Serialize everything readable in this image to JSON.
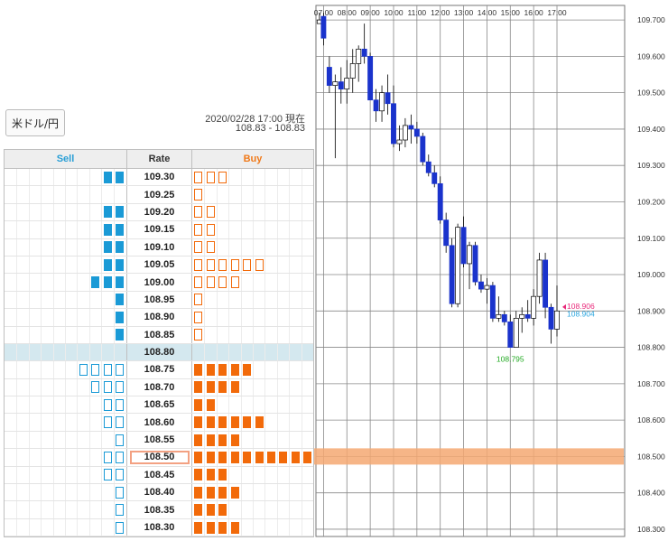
{
  "pair_label": "米ドル/円",
  "timestamp": "2020/02/28 17:00 現在",
  "bid_ask": "108.83 - 108.83",
  "book": {
    "headers": {
      "sell": "Sell",
      "rate": "Rate",
      "buy": "Buy"
    },
    "colors": {
      "sell": "#1a9ad6",
      "buy": "#f26a0a",
      "current_row": "#d4e8ef",
      "highlight": "#f3a182"
    },
    "current_rate": "108.80",
    "highlight_rate": "108.50",
    "rows": [
      {
        "rate": "109.30",
        "sell_filled": 2,
        "sell_outline": 0,
        "buy_filled": 0,
        "buy_outline": 3
      },
      {
        "rate": "109.25",
        "sell_filled": 0,
        "sell_outline": 0,
        "buy_filled": 0,
        "buy_outline": 1
      },
      {
        "rate": "109.20",
        "sell_filled": 2,
        "sell_outline": 0,
        "buy_filled": 0,
        "buy_outline": 2
      },
      {
        "rate": "109.15",
        "sell_filled": 2,
        "sell_outline": 0,
        "buy_filled": 0,
        "buy_outline": 2
      },
      {
        "rate": "109.10",
        "sell_filled": 2,
        "sell_outline": 0,
        "buy_filled": 0,
        "buy_outline": 2
      },
      {
        "rate": "109.05",
        "sell_filled": 2,
        "sell_outline": 0,
        "buy_filled": 0,
        "buy_outline": 6
      },
      {
        "rate": "109.00",
        "sell_filled": 3,
        "sell_outline": 0,
        "buy_filled": 0,
        "buy_outline": 4
      },
      {
        "rate": "108.95",
        "sell_filled": 1,
        "sell_outline": 0,
        "buy_filled": 0,
        "buy_outline": 1
      },
      {
        "rate": "108.90",
        "sell_filled": 1,
        "sell_outline": 0,
        "buy_filled": 0,
        "buy_outline": 1
      },
      {
        "rate": "108.85",
        "sell_filled": 1,
        "sell_outline": 0,
        "buy_filled": 0,
        "buy_outline": 1
      },
      {
        "rate": "108.80",
        "sell_filled": 0,
        "sell_outline": 0,
        "buy_filled": 0,
        "buy_outline": 0
      },
      {
        "rate": "108.75",
        "sell_filled": 0,
        "sell_outline": 4,
        "buy_filled": 5,
        "buy_outline": 0
      },
      {
        "rate": "108.70",
        "sell_filled": 0,
        "sell_outline": 3,
        "buy_filled": 4,
        "buy_outline": 0
      },
      {
        "rate": "108.65",
        "sell_filled": 0,
        "sell_outline": 2,
        "buy_filled": 2,
        "buy_outline": 0
      },
      {
        "rate": "108.60",
        "sell_filled": 0,
        "sell_outline": 2,
        "buy_filled": 6,
        "buy_outline": 0
      },
      {
        "rate": "108.55",
        "sell_filled": 0,
        "sell_outline": 1,
        "buy_filled": 4,
        "buy_outline": 0
      },
      {
        "rate": "108.50",
        "sell_filled": 0,
        "sell_outline": 2,
        "buy_filled": 10,
        "buy_outline": 0
      },
      {
        "rate": "108.45",
        "sell_filled": 0,
        "sell_outline": 2,
        "buy_filled": 3,
        "buy_outline": 0
      },
      {
        "rate": "108.40",
        "sell_filled": 0,
        "sell_outline": 1,
        "buy_filled": 4,
        "buy_outline": 0
      },
      {
        "rate": "108.35",
        "sell_filled": 0,
        "sell_outline": 1,
        "buy_filled": 3,
        "buy_outline": 0
      },
      {
        "rate": "108.30",
        "sell_filled": 0,
        "sell_outline": 1,
        "buy_filled": 4,
        "buy_outline": 0
      }
    ]
  },
  "chart_data": {
    "type": "candlestick",
    "x_tick_labels": [
      "07:00",
      "08:00",
      "09:00",
      "10:00",
      "11:00",
      "12:00",
      "13:00",
      "14:00",
      "15:00",
      "16:00",
      "17:00"
    ],
    "x_ticks": [
      0,
      4,
      8,
      12,
      16,
      20,
      24,
      28,
      32,
      36,
      40
    ],
    "ylim": [
      108.28,
      109.74
    ],
    "y_ticks": [
      109.7,
      109.6,
      109.5,
      109.4,
      109.3,
      109.2,
      109.1,
      109.0,
      108.9,
      108.8,
      108.7,
      108.6,
      108.5,
      108.4,
      108.3
    ],
    "y_tick_labels": [
      "109.700",
      "109.600",
      "109.500",
      "109.400",
      "109.300",
      "109.200",
      "109.100",
      "109.000",
      "108.900",
      "108.800",
      "108.700",
      "108.600",
      "108.500",
      "108.400",
      "108.300"
    ],
    "colors": {
      "down": "#1a33cc",
      "up": "#ffffff",
      "wick": "#000000",
      "grid": "#888888",
      "band": "#f4a872"
    },
    "candles": [
      {
        "x": -0.7,
        "o": 109.69,
        "h": 109.72,
        "l": 109.69,
        "c": 109.7
      },
      {
        "x": 0,
        "o": 109.71,
        "h": 109.72,
        "l": 109.63,
        "c": 109.65
      },
      {
        "x": 1,
        "o": 109.57,
        "h": 109.6,
        "l": 109.5,
        "c": 109.52
      },
      {
        "x": 2,
        "o": 109.52,
        "h": 109.55,
        "l": 109.32,
        "c": 109.53
      },
      {
        "x": 3,
        "o": 109.53,
        "h": 109.57,
        "l": 109.47,
        "c": 109.51
      },
      {
        "x": 4,
        "o": 109.51,
        "h": 109.59,
        "l": 109.47,
        "c": 109.54
      },
      {
        "x": 5,
        "o": 109.54,
        "h": 109.62,
        "l": 109.5,
        "c": 109.58
      },
      {
        "x": 6,
        "o": 109.58,
        "h": 109.63,
        "l": 109.53,
        "c": 109.62
      },
      {
        "x": 7,
        "o": 109.62,
        "h": 109.69,
        "l": 109.58,
        "c": 109.6
      },
      {
        "x": 8,
        "o": 109.6,
        "h": 109.61,
        "l": 109.48,
        "c": 109.48
      },
      {
        "x": 9,
        "o": 109.48,
        "h": 109.51,
        "l": 109.42,
        "c": 109.45
      },
      {
        "x": 10,
        "o": 109.45,
        "h": 109.52,
        "l": 109.42,
        "c": 109.5
      },
      {
        "x": 11,
        "o": 109.5,
        "h": 109.55,
        "l": 109.44,
        "c": 109.47
      },
      {
        "x": 12,
        "o": 109.47,
        "h": 109.52,
        "l": 109.35,
        "c": 109.36
      },
      {
        "x": 13,
        "o": 109.36,
        "h": 109.41,
        "l": 109.34,
        "c": 109.37
      },
      {
        "x": 14,
        "o": 109.37,
        "h": 109.43,
        "l": 109.35,
        "c": 109.41
      },
      {
        "x": 15,
        "o": 109.41,
        "h": 109.44,
        "l": 109.36,
        "c": 109.4
      },
      {
        "x": 16,
        "o": 109.4,
        "h": 109.42,
        "l": 109.36,
        "c": 109.38
      },
      {
        "x": 17,
        "o": 109.38,
        "h": 109.39,
        "l": 109.3,
        "c": 109.31
      },
      {
        "x": 18,
        "o": 109.31,
        "h": 109.33,
        "l": 109.27,
        "c": 109.28
      },
      {
        "x": 19,
        "o": 109.28,
        "h": 109.3,
        "l": 109.24,
        "c": 109.25
      },
      {
        "x": 20,
        "o": 109.25,
        "h": 109.27,
        "l": 109.14,
        "c": 109.15
      },
      {
        "x": 21,
        "o": 109.15,
        "h": 109.17,
        "l": 109.06,
        "c": 109.08
      },
      {
        "x": 22,
        "o": 109.08,
        "h": 109.1,
        "l": 108.91,
        "c": 108.92
      },
      {
        "x": 23,
        "o": 108.92,
        "h": 109.14,
        "l": 108.91,
        "c": 109.13
      },
      {
        "x": 24,
        "o": 109.13,
        "h": 109.16,
        "l": 109.02,
        "c": 109.03
      },
      {
        "x": 25,
        "o": 109.03,
        "h": 109.09,
        "l": 108.96,
        "c": 109.08
      },
      {
        "x": 26,
        "o": 109.08,
        "h": 109.09,
        "l": 108.97,
        "c": 108.98
      },
      {
        "x": 27,
        "o": 108.98,
        "h": 109.0,
        "l": 108.95,
        "c": 108.96
      },
      {
        "x": 28,
        "o": 108.96,
        "h": 108.99,
        "l": 108.92,
        "c": 108.97
      },
      {
        "x": 29,
        "o": 108.97,
        "h": 108.98,
        "l": 108.87,
        "c": 108.88
      },
      {
        "x": 30,
        "o": 108.88,
        "h": 108.94,
        "l": 108.87,
        "c": 108.89
      },
      {
        "x": 31,
        "o": 108.89,
        "h": 108.9,
        "l": 108.86,
        "c": 108.87
      },
      {
        "x": 32,
        "o": 108.87,
        "h": 108.89,
        "l": 108.8,
        "c": 108.8
      },
      {
        "x": 33,
        "o": 108.8,
        "h": 108.9,
        "l": 108.8,
        "c": 108.88
      },
      {
        "x": 34,
        "o": 108.88,
        "h": 108.91,
        "l": 108.84,
        "c": 108.89
      },
      {
        "x": 35,
        "o": 108.89,
        "h": 108.93,
        "l": 108.87,
        "c": 108.88
      },
      {
        "x": 36,
        "o": 108.88,
        "h": 108.96,
        "l": 108.86,
        "c": 108.94
      },
      {
        "x": 37,
        "o": 108.94,
        "h": 109.06,
        "l": 108.92,
        "c": 109.04
      },
      {
        "x": 38,
        "o": 109.04,
        "h": 109.06,
        "l": 108.88,
        "c": 108.91
      },
      {
        "x": 39,
        "o": 108.91,
        "h": 108.92,
        "l": 108.81,
        "c": 108.85
      },
      {
        "x": 40,
        "o": 108.85,
        "h": 108.97,
        "l": 108.83,
        "c": 108.9
      }
    ],
    "x_range": [
      -1.3,
      51.6
    ],
    "band": {
      "price": 108.5
    },
    "annotations": [
      {
        "text": "108.906",
        "value": 108.906,
        "color": "#e8297a"
      },
      {
        "text": "108.904",
        "value": 108.904,
        "color": "#2aa6e0"
      },
      {
        "text": "108.795",
        "value": 108.795,
        "color": "#22aa22"
      }
    ]
  }
}
